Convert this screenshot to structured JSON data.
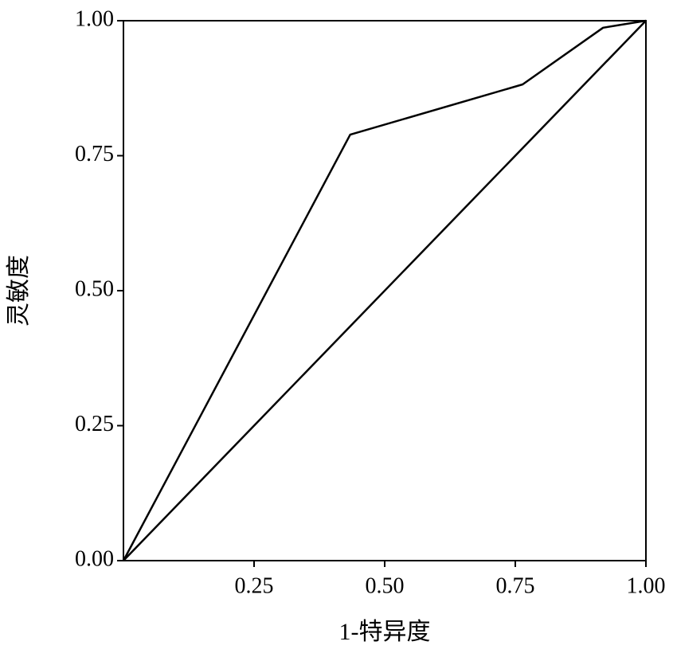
{
  "chart_data": {
    "type": "line",
    "x_label": "1-特异度",
    "y_label": "灵敏度",
    "series": [
      {
        "x": [
          0,
          0.434,
          0.764,
          0.918,
          1
        ],
        "values": [
          0,
          0.789,
          0.882,
          0.987,
          1
        ],
        "color": "#000000"
      },
      {
        "x": [
          0,
          1
        ],
        "values": [
          0,
          1
        ],
        "color": "#000000"
      }
    ],
    "xlim": [
      0,
      1
    ],
    "ylim": [
      0,
      1
    ],
    "xticks": [
      {
        "value": 0.25,
        "label": "0.25"
      },
      {
        "value": 0.5,
        "label": "0.50"
      },
      {
        "value": 0.75,
        "label": "0.75"
      },
      {
        "value": 1,
        "label": "1.00"
      }
    ],
    "yticks": [
      {
        "value": 0,
        "label": "0.00"
      },
      {
        "value": 0.25,
        "label": "0.25"
      },
      {
        "value": 0.5,
        "label": "0.50"
      },
      {
        "value": 0.75,
        "label": "0.75"
      },
      {
        "value": 1,
        "label": "1.00"
      }
    ],
    "grid": false
  }
}
